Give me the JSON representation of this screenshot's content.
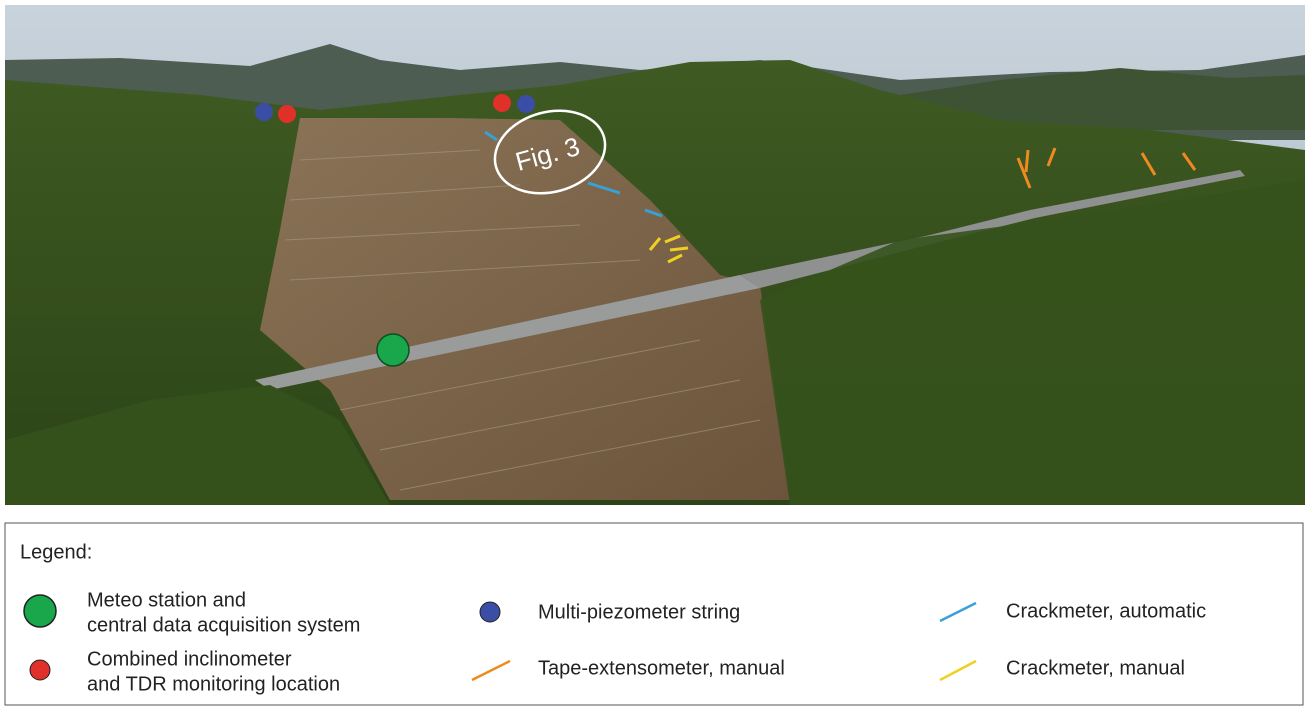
{
  "figure": {
    "annotation": "Fig. 3"
  },
  "legend": {
    "title": "Legend:",
    "items": [
      {
        "lines": [
          "Meteo station and",
          "central data acquisition system"
        ]
      },
      {
        "lines": [
          "Combined inclinometer",
          "and TDR monitoring location"
        ]
      },
      {
        "lines": [
          "Multi-piezometer string"
        ]
      },
      {
        "lines": [
          "Tape-extensometer, manual"
        ]
      },
      {
        "lines": [
          "Crackmeter, automatic"
        ]
      },
      {
        "lines": [
          "Crackmeter, manual"
        ]
      }
    ]
  }
}
